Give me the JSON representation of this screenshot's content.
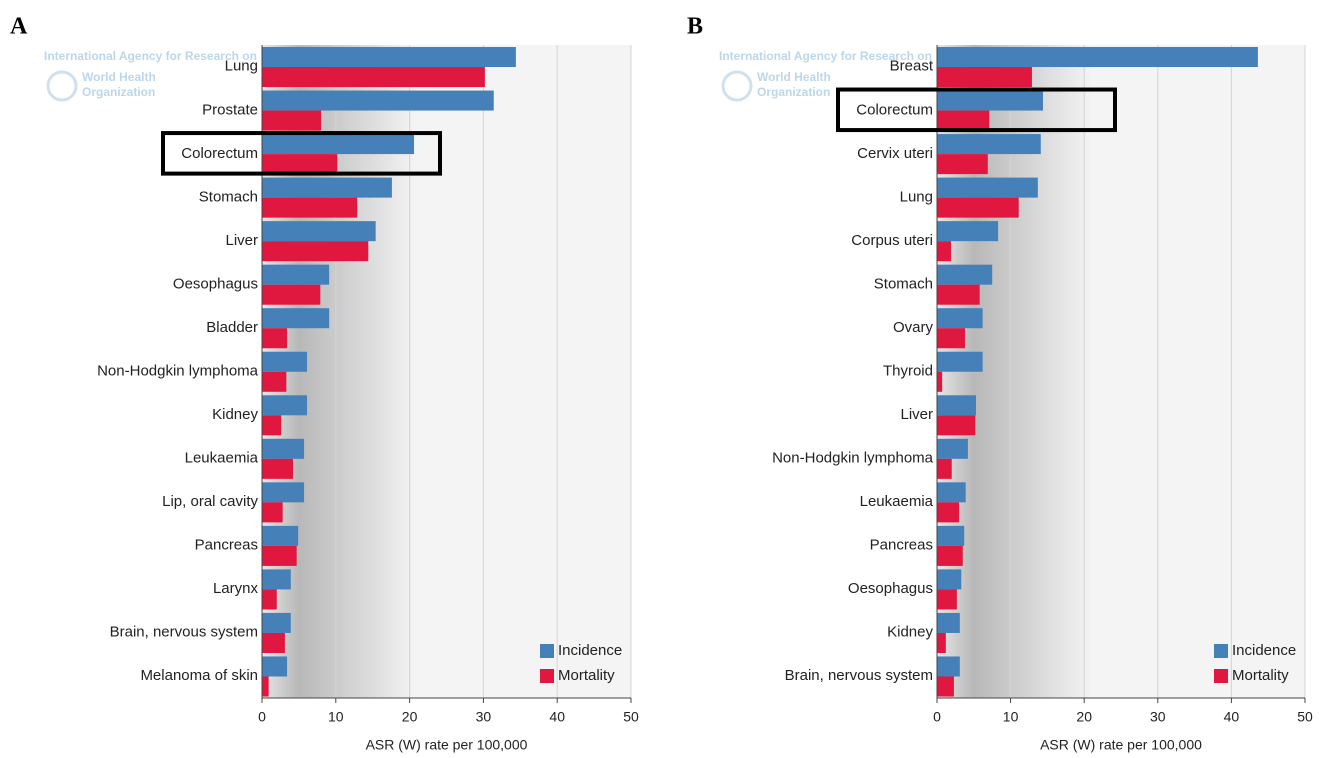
{
  "chart_data": [
    {
      "type": "bar",
      "orientation": "horizontal",
      "panel": "A",
      "watermark": [
        "International Agency for Research on",
        "World Health",
        "Organization"
      ],
      "categories": [
        "Lung",
        "Prostate",
        "Colorectum",
        "Stomach",
        "Liver",
        "Oesophagus",
        "Bladder",
        "Non-Hodgkin lymphoma",
        "Kidney",
        "Leukaemia",
        "Lip, oral cavity",
        "Pancreas",
        "Larynx",
        "Brain, nervous system",
        "Melanoma of skin"
      ],
      "series": [
        {
          "name": "Incidence",
          "color": "#4580b8",
          "values": [
            34.4,
            31.4,
            20.6,
            17.6,
            15.4,
            9.1,
            9.1,
            6.1,
            6.1,
            5.7,
            5.7,
            4.9,
            3.9,
            3.9,
            3.4
          ]
        },
        {
          "name": "Mortality",
          "color": "#e0173f",
          "values": [
            30.2,
            8.0,
            10.2,
            12.9,
            14.4,
            7.9,
            3.4,
            3.3,
            2.6,
            4.2,
            2.8,
            4.7,
            2.0,
            3.1,
            0.9
          ]
        }
      ],
      "xlim": [
        0,
        50
      ],
      "xticks": [
        0,
        10,
        20,
        30,
        40,
        50
      ],
      "x_label": "ASR (W) rate per 100,000",
      "grid": true,
      "legend": "lower right"
    },
    {
      "type": "bar",
      "orientation": "horizontal",
      "panel": "B",
      "watermark": [
        "International Agency for Research on",
        "World Health",
        "Organization"
      ],
      "categories": [
        "Breast",
        "Colorectum",
        "Cervix uteri",
        "Lung",
        "Corpus uteri",
        "Stomach",
        "Ovary",
        "Thyroid",
        "Liver",
        "Non-Hodgkin lymphoma",
        "Leukaemia",
        "Pancreas",
        "Oesophagus",
        "Kidney",
        "Brain, nervous system"
      ],
      "series": [
        {
          "name": "Incidence",
          "color": "#4580b8",
          "values": [
            43.6,
            14.4,
            14.1,
            13.7,
            8.3,
            7.5,
            6.2,
            6.2,
            5.3,
            4.2,
            3.9,
            3.7,
            3.3,
            3.1,
            3.1
          ]
        },
        {
          "name": "Mortality",
          "color": "#e0173f",
          "values": [
            12.9,
            7.1,
            6.9,
            11.1,
            1.9,
            5.8,
            3.8,
            0.7,
            5.2,
            2.0,
            3.0,
            3.5,
            2.7,
            1.2,
            2.3
          ]
        }
      ],
      "xlim": [
        0,
        50
      ],
      "xticks": [
        0,
        10,
        20,
        30,
        40,
        50
      ],
      "x_label": "ASR (W) rate per 100,000",
      "grid": true,
      "legend": "lower right"
    }
  ]
}
